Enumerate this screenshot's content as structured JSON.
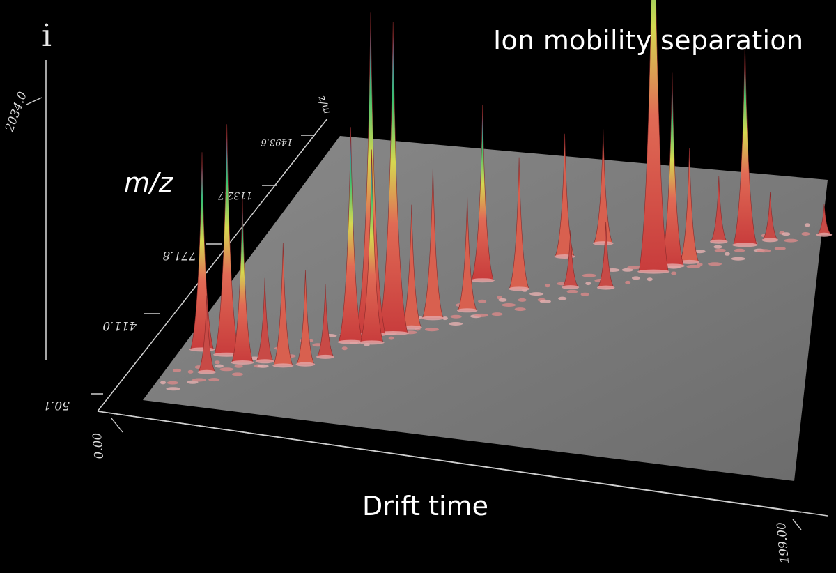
{
  "title": "Ion mobility separation",
  "chart_data": {
    "type": "surface3d",
    "title": "Ion mobility separation",
    "xlabel": "Drift time",
    "ylabel": "m/z",
    "zlabel": "i",
    "x_ticks": [
      "0.00",
      "199.00"
    ],
    "y_ticks": [
      "50.1",
      "411.0",
      "771.8",
      "1132.7",
      "1493.6"
    ],
    "z_ticks": [
      "2034.0"
    ],
    "xlim": [
      0,
      199
    ],
    "ylim": [
      50.1,
      1493.6
    ],
    "zlim": [
      0,
      2034
    ],
    "peaks": [
      {
        "x": 6,
        "y": 340,
        "z": 900
      },
      {
        "x": 14,
        "y": 330,
        "z": 1050
      },
      {
        "x": 20,
        "y": 300,
        "z": 750
      },
      {
        "x": 12,
        "y": 230,
        "z": 350
      },
      {
        "x": 26,
        "y": 320,
        "z": 380
      },
      {
        "x": 32,
        "y": 310,
        "z": 560
      },
      {
        "x": 38,
        "y": 330,
        "z": 430
      },
      {
        "x": 42,
        "y": 380,
        "z": 330
      },
      {
        "x": 46,
        "y": 470,
        "z": 980
      },
      {
        "x": 50,
        "y": 520,
        "z": 1470
      },
      {
        "x": 52,
        "y": 480,
        "z": 880
      },
      {
        "x": 56,
        "y": 540,
        "z": 1420
      },
      {
        "x": 60,
        "y": 580,
        "z": 560
      },
      {
        "x": 64,
        "y": 640,
        "z": 700
      },
      {
        "x": 72,
        "y": 700,
        "z": 520
      },
      {
        "x": 82,
        "y": 840,
        "z": 600
      },
      {
        "x": 70,
        "y": 860,
        "z": 800
      },
      {
        "x": 88,
        "y": 1030,
        "z": 560
      },
      {
        "x": 96,
        "y": 1120,
        "z": 520
      },
      {
        "x": 96,
        "y": 880,
        "z": 260
      },
      {
        "x": 106,
        "y": 900,
        "z": 300
      },
      {
        "x": 116,
        "y": 1010,
        "z": 2030
      },
      {
        "x": 120,
        "y": 1050,
        "z": 880
      },
      {
        "x": 124,
        "y": 1080,
        "z": 520
      },
      {
        "x": 128,
        "y": 1200,
        "z": 300
      },
      {
        "x": 136,
        "y": 1200,
        "z": 930
      },
      {
        "x": 142,
        "y": 1240,
        "z": 220
      },
      {
        "x": 156,
        "y": 1300,
        "z": 140
      },
      {
        "x": 170,
        "y": 1360,
        "z": 110
      },
      {
        "x": 182,
        "y": 1400,
        "z": 100
      },
      {
        "x": 192,
        "y": 1440,
        "z": 70
      }
    ],
    "colors": {
      "low": "#c83c3c",
      "mid": "#d6d850",
      "high": "#3cc070",
      "top": "#5050c8",
      "floor": "#7a7a7a",
      "background": "#000000",
      "axis": "#cfcfcf"
    }
  }
}
